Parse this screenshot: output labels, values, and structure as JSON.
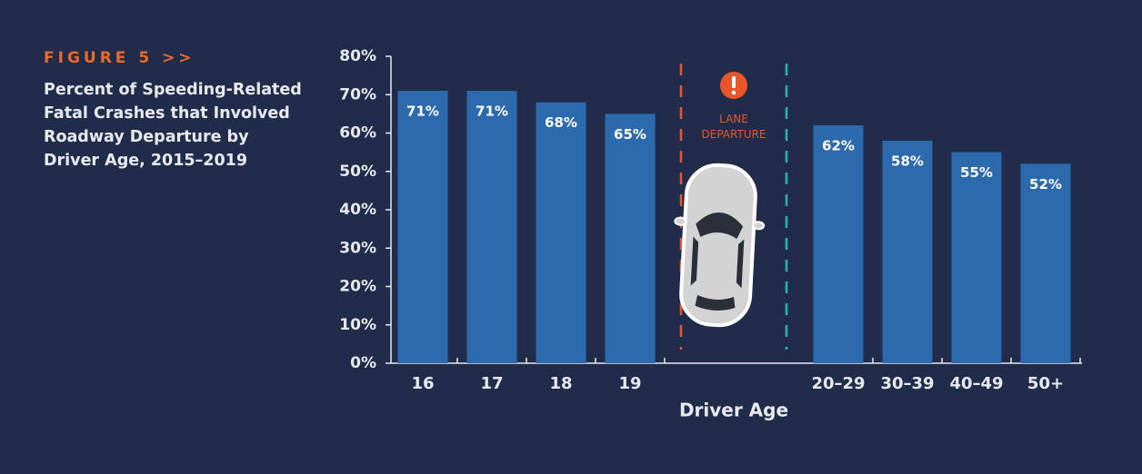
{
  "chart_data": {
    "type": "bar",
    "figure_label": "FIGURE 5 >>",
    "title": "Percent of Speeding-Related Fatal Crashes that Involved Roadway Departure by Driver Age, 2015–2019",
    "annotation": "LANE DEPARTURE",
    "x_label": "Driver Age",
    "categories": [
      "16",
      "17",
      "18",
      "19",
      "20–29",
      "30–39",
      "40–49",
      "50+"
    ],
    "values": [
      71,
      71,
      68,
      65,
      62,
      58,
      55,
      52
    ],
    "value_labels": [
      "71%",
      "71%",
      "68%",
      "65%",
      "62%",
      "58%",
      "55%",
      "52%"
    ],
    "color": "#2c6aad",
    "ylim": [
      0,
      80
    ],
    "yticks": [
      {
        "value": 0,
        "label": "0%"
      },
      {
        "value": 10,
        "label": "10%"
      },
      {
        "value": 20,
        "label": "20%"
      },
      {
        "value": 30,
        "label": "30%"
      },
      {
        "value": 40,
        "label": "40%"
      },
      {
        "value": 50,
        "label": "50%"
      },
      {
        "value": 60,
        "label": "60%"
      },
      {
        "value": 70,
        "label": "70%"
      },
      {
        "value": 80,
        "label": "80%"
      }
    ],
    "grid": false
  }
}
